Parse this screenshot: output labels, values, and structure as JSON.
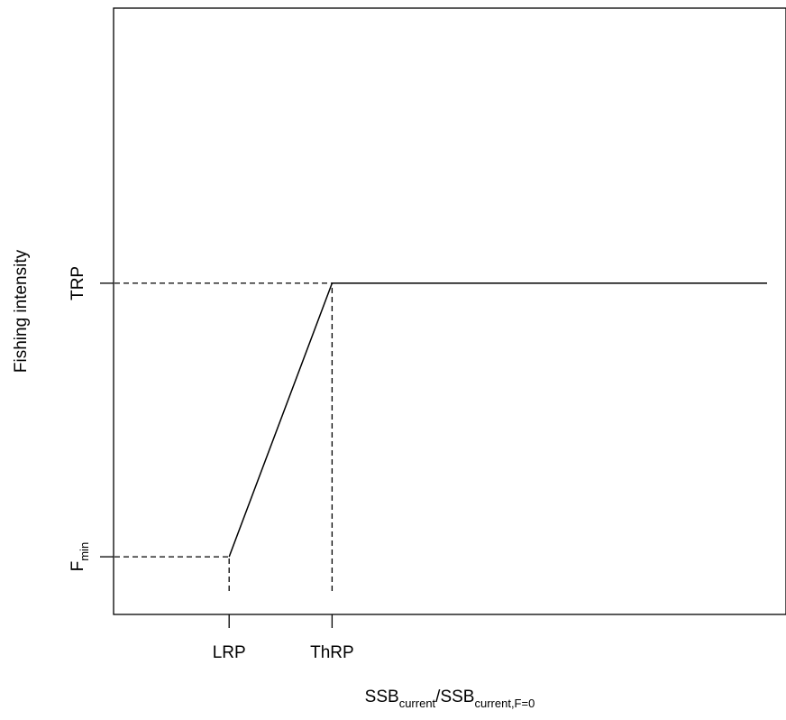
{
  "chart_data": {
    "type": "line",
    "title": "",
    "xlabel": {
      "parts": [
        {
          "text": "SSB",
          "style": "normal"
        },
        {
          "text": "current",
          "style": "sub"
        },
        {
          "text": "/",
          "style": "normal"
        },
        {
          "text": "SSB",
          "style": "normal"
        },
        {
          "text": "current,F=0",
          "style": "sub"
        }
      ]
    },
    "ylabel": "Fishing intensity",
    "xlim": [
      0,
      1
    ],
    "ylim": [
      0,
      1
    ],
    "x_ticks": [
      {
        "value": 0.2,
        "label": "LRP"
      },
      {
        "value": 0.4,
        "label": "ThRP"
      }
    ],
    "y_ticks": [
      {
        "value": 0.1,
        "label_main": "F",
        "label_sub": "min"
      },
      {
        "value": 0.9,
        "label_main": "TRP",
        "label_sub": ""
      }
    ],
    "grid": false,
    "series": [
      {
        "style": "solid",
        "color": "#000000",
        "x": [
          0.2,
          0.4,
          1.25
        ],
        "y": [
          0.1,
          0.9,
          0.9
        ]
      }
    ],
    "reference_lines": [
      {
        "style": "dashed",
        "x": [
          -0.15,
          0.2
        ],
        "y": [
          0.1,
          0.1
        ]
      },
      {
        "style": "dashed",
        "x": [
          0.2,
          0.2
        ],
        "y": [
          0.0,
          0.1
        ]
      },
      {
        "style": "dashed",
        "x": [
          -0.15,
          0.4
        ],
        "y": [
          0.9,
          0.9
        ]
      },
      {
        "style": "dashed",
        "x": [
          0.4,
          0.4
        ],
        "y": [
          0.0,
          0.9
        ]
      }
    ]
  }
}
